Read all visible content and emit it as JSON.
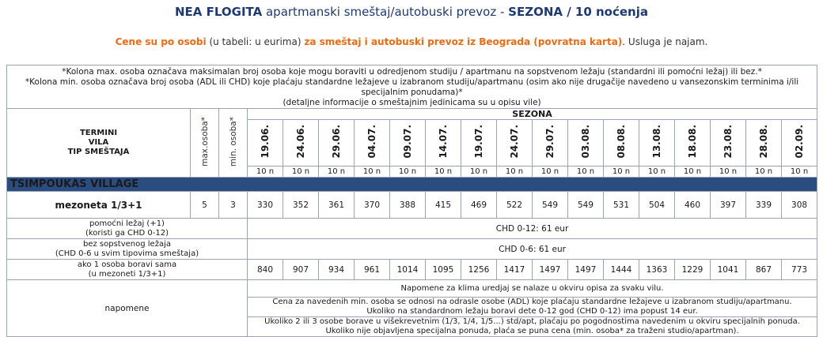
{
  "header": {
    "title_bold": "NEA FLOGITA",
    "title_mid": " apartmanski smeštaj/autobuski prevoz - ",
    "title_bold2": "SEZONA / 10 noćenja"
  },
  "subheader": {
    "part1": "Cene su po osobi",
    "part2": " (u tabeli: u eurima) ",
    "part3": "za smeštaj i autobuski prevoz iz Beograda (povratna karta)",
    "part4": ". Usluga je najam."
  },
  "top_notes": {
    "line1": "*Kolona max. osoba označava maksimalan broj osoba koje mogu boraviti u odredjenom studiju / apartmanu na sopstvenom ležaju (standardni ili pomoćni ležaj) ili bez.*",
    "line2": "*Kolona min. osoba označava broj osoba (ADL ili CHD) koje plaćaju standardne ležajeve u izabranom studiju/apartmanu (osim ako nije drugačije navedeno u vansezonskim terminima i/ili specijalnim ponudama)*",
    "line3": "(detaljne informacije o smeštajnim jedinicama su u opisu vile)"
  },
  "columns": {
    "termini": "TERMINI",
    "vila": "VILA",
    "tip": "TIP SMEŠTAJA",
    "max": "max.osoba*",
    "min": "min. osoba*",
    "sezona": "SEZONA"
  },
  "dates": [
    "19.06.",
    "24.06.",
    "29.06.",
    "04.07.",
    "09.07.",
    "14.07.",
    "19.07.",
    "24.07.",
    "29.07.",
    "03.08.",
    "08.08.",
    "13.08.",
    "18.08.",
    "23.08.",
    "28.08.",
    "02.09."
  ],
  "nights": [
    "10 n",
    "10 n",
    "10 n",
    "10 n",
    "10 n",
    "10 n",
    "10 n",
    "10 n",
    "10 n",
    "10 n",
    "10 n",
    "10 n",
    "10 n",
    "10 n",
    "10 n",
    "10 n"
  ],
  "village": "TSIMPOUKAS VILLAGE",
  "unit": {
    "name": "mezoneta 1/3+1",
    "max": "5",
    "min": "3",
    "prices": [
      "330",
      "352",
      "361",
      "370",
      "388",
      "415",
      "469",
      "522",
      "549",
      "549",
      "531",
      "504",
      "460",
      "397",
      "339",
      "308"
    ]
  },
  "extra_bed": {
    "label1": "pomoćni ležaj (+1)",
    "label2": "(koristi ga CHD 0-12)",
    "value": "CHD 0-12: 61 eur"
  },
  "no_bed": {
    "label1": "bez sopstvenog ležaja",
    "label2": "(CHD 0-6 u svim tipovima smeštaja)",
    "value": "CHD 0-6: 61 eur"
  },
  "single": {
    "label1": "ako 1 osoba boravi sama",
    "label2": "(u mezoneti 1/3+1)",
    "prices": [
      "840",
      "907",
      "934",
      "961",
      "1014",
      "1095",
      "1256",
      "1417",
      "1497",
      "1497",
      "1444",
      "1363",
      "1229",
      "1041",
      "867",
      "773"
    ]
  },
  "napomene": {
    "label": "napomene",
    "note1": "Napomene za klima uredjaj se nalaze u okviru opisa za svaku vilu.",
    "note2a": "Cena za  navedenih min. osoba se odnosi na odrasle osobe (ADL) koje plaćaju standardne ležajeve u izabranom studiju/apartmanu.",
    "note2b": "Ukoliko na standardnom ležaju boravi dete 0-12 god (CHD 0-12) ima popust 14 eur.",
    "note3a": "Ukoliko 2 ili 3 osobe borave u višekrevetnim (1/3, 1/4, 1/5...) std/apt, plaćaju po pogodnostima navedenim u okviru specijalnih ponuda.",
    "note3b": "Ukoliko nije objavljena specijalna ponuda, plaća se puna cena (min. osoba* za traženi studio/apartman)."
  }
}
